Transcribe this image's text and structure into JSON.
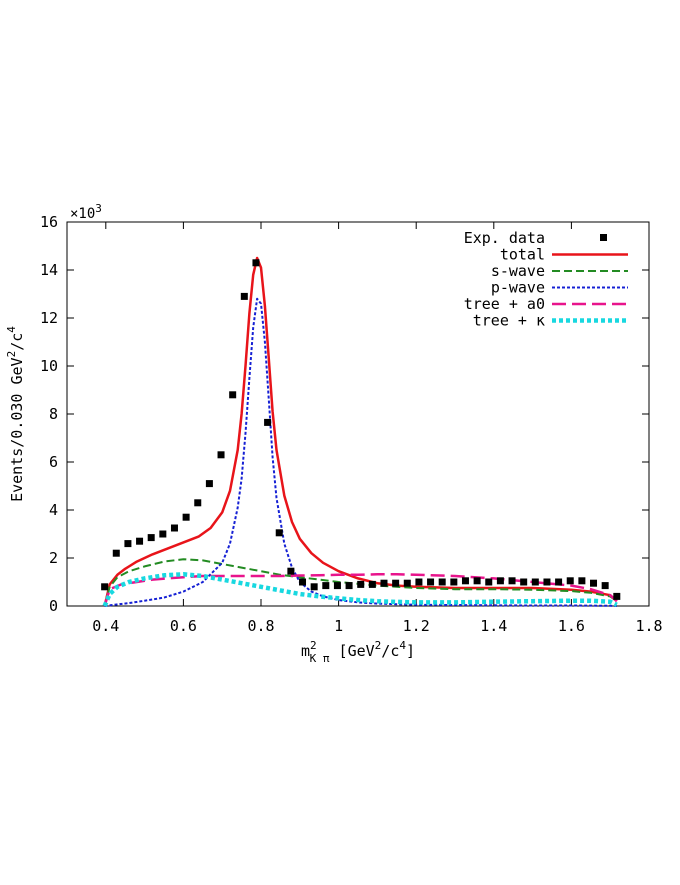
{
  "chart_data": {
    "type": "line",
    "title": "",
    "xlabel": {
      "base": "m",
      "sup": "2",
      "sub": "K π",
      "unit_pre": " [GeV",
      "unit_sup1": "2",
      "unit_mid": "/c",
      "unit_sup2": "4",
      "unit_post": "]"
    },
    "ylabel": {
      "pre": "Events/0.030 GeV",
      "sup1": "2",
      "mid": "/c",
      "sup2": "4"
    },
    "y_multiplier": {
      "base": "×10",
      "exp": "3"
    },
    "xlim": [
      0.3,
      1.8
    ],
    "ylim": [
      0,
      16
    ],
    "x_ticks": [
      {
        "value": 0.4,
        "label": "0.4"
      },
      {
        "value": 0.6,
        "label": "0.6"
      },
      {
        "value": 0.8,
        "label": "0.8"
      },
      {
        "value": 1.0,
        "label": "1"
      },
      {
        "value": 1.2,
        "label": "1.2"
      },
      {
        "value": 1.4,
        "label": "1.4"
      },
      {
        "value": 1.6,
        "label": "1.6"
      },
      {
        "value": 1.8,
        "label": "1.8"
      }
    ],
    "y_ticks": [
      {
        "value": 0,
        "label": "0"
      },
      {
        "value": 2,
        "label": "2"
      },
      {
        "value": 4,
        "label": "4"
      },
      {
        "value": 6,
        "label": "6"
      },
      {
        "value": 8,
        "label": "8"
      },
      {
        "value": 10,
        "label": "10"
      },
      {
        "value": 12,
        "label": "12"
      },
      {
        "value": 14,
        "label": "14"
      },
      {
        "value": 16,
        "label": "16"
      }
    ],
    "grid": false,
    "legend_position": "top-right",
    "data_points": {
      "name": "Exp. data",
      "color": "#000000",
      "marker": "square",
      "x": [
        0.397,
        0.427,
        0.457,
        0.487,
        0.517,
        0.547,
        0.577,
        0.607,
        0.637,
        0.667,
        0.697,
        0.727,
        0.757,
        0.787,
        0.817,
        0.847,
        0.877,
        0.907,
        0.937,
        0.967,
        0.997,
        1.027,
        1.057,
        1.087,
        1.117,
        1.147,
        1.177,
        1.207,
        1.237,
        1.267,
        1.297,
        1.327,
        1.357,
        1.387,
        1.417,
        1.447,
        1.477,
        1.507,
        1.537,
        1.567,
        1.597,
        1.627,
        1.657,
        1.687,
        1.717
      ],
      "y": [
        0.8,
        2.2,
        2.6,
        2.7,
        2.85,
        3.0,
        3.25,
        3.7,
        4.3,
        5.1,
        6.3,
        8.8,
        12.9,
        14.3,
        7.65,
        3.05,
        1.45,
        1.0,
        0.8,
        0.85,
        0.85,
        0.85,
        0.9,
        0.9,
        0.95,
        0.95,
        0.95,
        1.0,
        1.0,
        1.0,
        1.0,
        1.05,
        1.05,
        1.0,
        1.05,
        1.05,
        1.0,
        1.0,
        1.0,
        1.0,
        1.05,
        1.05,
        0.95,
        0.85,
        0.4
      ]
    },
    "series": [
      {
        "name": "total",
        "color": "#e8141a",
        "style": "solid",
        "x": [
          0.397,
          0.41,
          0.43,
          0.45,
          0.48,
          0.52,
          0.56,
          0.6,
          0.64,
          0.67,
          0.7,
          0.72,
          0.74,
          0.75,
          0.76,
          0.77,
          0.78,
          0.79,
          0.8,
          0.81,
          0.82,
          0.83,
          0.84,
          0.86,
          0.88,
          0.9,
          0.93,
          0.96,
          1.0,
          1.05,
          1.1,
          1.15,
          1.2,
          1.3,
          1.4,
          1.5,
          1.6,
          1.65,
          1.7,
          1.717
        ],
        "y": [
          0.0,
          0.9,
          1.3,
          1.55,
          1.85,
          2.15,
          2.4,
          2.65,
          2.9,
          3.25,
          3.9,
          4.8,
          6.5,
          8.0,
          10.0,
          12.2,
          13.8,
          14.5,
          14.1,
          12.5,
          10.3,
          8.1,
          6.5,
          4.6,
          3.5,
          2.8,
          2.2,
          1.8,
          1.45,
          1.15,
          0.95,
          0.85,
          0.8,
          0.75,
          0.75,
          0.75,
          0.68,
          0.6,
          0.45,
          0.2
        ]
      },
      {
        "name": "s-wave",
        "color": "#238b22",
        "style": "dashed",
        "x": [
          0.397,
          0.41,
          0.43,
          0.46,
          0.5,
          0.55,
          0.6,
          0.65,
          0.7,
          0.75,
          0.8,
          0.85,
          0.9,
          0.95,
          1.0,
          1.1,
          1.2,
          1.3,
          1.4,
          1.5,
          1.6,
          1.65,
          1.7,
          1.717
        ],
        "y": [
          0.0,
          0.8,
          1.2,
          1.45,
          1.65,
          1.85,
          1.95,
          1.9,
          1.75,
          1.6,
          1.45,
          1.3,
          1.2,
          1.1,
          1.0,
          0.85,
          0.75,
          0.7,
          0.7,
          0.68,
          0.62,
          0.55,
          0.4,
          0.2
        ]
      },
      {
        "name": "p-wave",
        "color": "#1520d4",
        "style": "dotted",
        "x": [
          0.397,
          0.42,
          0.46,
          0.5,
          0.55,
          0.6,
          0.65,
          0.7,
          0.72,
          0.74,
          0.75,
          0.76,
          0.77,
          0.78,
          0.79,
          0.8,
          0.81,
          0.82,
          0.83,
          0.84,
          0.86,
          0.88,
          0.9,
          0.93,
          0.96,
          1.0,
          1.05,
          1.1,
          1.2,
          1.3,
          1.4,
          1.5,
          1.6,
          1.7,
          1.717
        ],
        "y": [
          0.0,
          0.05,
          0.12,
          0.22,
          0.35,
          0.6,
          1.0,
          1.8,
          2.6,
          4.1,
          5.3,
          7.2,
          9.5,
          11.6,
          12.8,
          12.6,
          11.0,
          8.6,
          6.2,
          4.5,
          2.6,
          1.6,
          1.0,
          0.6,
          0.4,
          0.25,
          0.15,
          0.1,
          0.05,
          0.04,
          0.03,
          0.02,
          0.02,
          0.01,
          0.0
        ]
      },
      {
        "name": "tree + a0",
        "color": "#e8148c",
        "style": "longdash",
        "x": [
          0.397,
          0.41,
          0.44,
          0.48,
          0.52,
          0.56,
          0.6,
          0.65,
          0.7,
          0.75,
          0.8,
          0.85,
          0.9,
          0.95,
          1.0,
          1.05,
          1.1,
          1.15,
          1.2,
          1.3,
          1.4,
          1.5,
          1.6,
          1.65,
          1.7,
          1.717
        ],
        "y": [
          0.0,
          0.7,
          0.9,
          1.0,
          1.1,
          1.15,
          1.2,
          1.25,
          1.25,
          1.25,
          1.25,
          1.25,
          1.27,
          1.28,
          1.3,
          1.3,
          1.32,
          1.32,
          1.3,
          1.25,
          1.15,
          1.0,
          0.85,
          0.7,
          0.45,
          0.2
        ]
      },
      {
        "name": "tree + κ",
        "color": "#18d8e0",
        "style": "thickdot",
        "x": [
          0.397,
          0.41,
          0.43,
          0.46,
          0.5,
          0.55,
          0.6,
          0.65,
          0.7,
          0.75,
          0.8,
          0.85,
          0.9,
          0.95,
          1.0,
          1.05,
          1.1,
          1.15,
          1.2,
          1.3,
          1.4,
          1.5,
          1.6,
          1.65,
          1.7,
          1.717
        ],
        "y": [
          0.0,
          0.5,
          0.8,
          1.0,
          1.15,
          1.28,
          1.32,
          1.25,
          1.1,
          0.95,
          0.8,
          0.65,
          0.5,
          0.4,
          0.32,
          0.25,
          0.2,
          0.17,
          0.15,
          0.15,
          0.18,
          0.2,
          0.22,
          0.22,
          0.18,
          0.05
        ]
      }
    ]
  }
}
